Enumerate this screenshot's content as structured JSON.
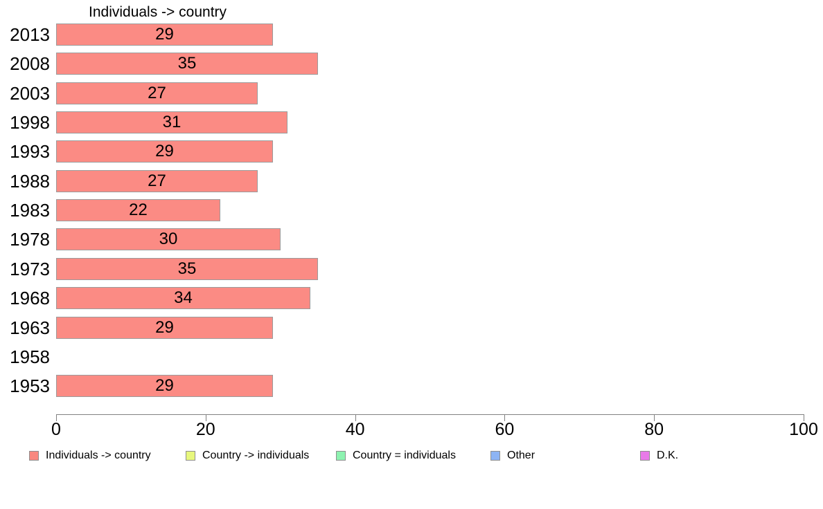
{
  "chart_data": {
    "type": "bar",
    "orientation": "horizontal",
    "title": "Individuals -> country",
    "categories": [
      "2013",
      "2008",
      "2003",
      "1998",
      "1993",
      "1988",
      "1983",
      "1978",
      "1973",
      "1968",
      "1963",
      "1958",
      "1953"
    ],
    "values": [
      29,
      35,
      27,
      31,
      29,
      27,
      22,
      30,
      35,
      34,
      29,
      null,
      29
    ],
    "xlabel": "",
    "ylabel": "",
    "xlim": [
      0,
      100
    ],
    "x_ticks": [
      0,
      20,
      40,
      60,
      80,
      100
    ],
    "grid": false,
    "value_labels_shown": true,
    "bar_color": "#fb8b84",
    "bar_border_color": "#9b9b9b",
    "axis_color": "#808080",
    "text_color": "#000000",
    "legend": {
      "position": "bottom",
      "items": [
        {
          "label": "Individuals -> country",
          "color": "#f9887f"
        },
        {
          "label": "Country -> individuals",
          "color": "#e7f77d"
        },
        {
          "label": "Country = individuals",
          "color": "#8df2b0"
        },
        {
          "label": "Other",
          "color": "#8db4f4"
        },
        {
          "label": "D.K.",
          "color": "#e87ae8"
        }
      ]
    }
  }
}
